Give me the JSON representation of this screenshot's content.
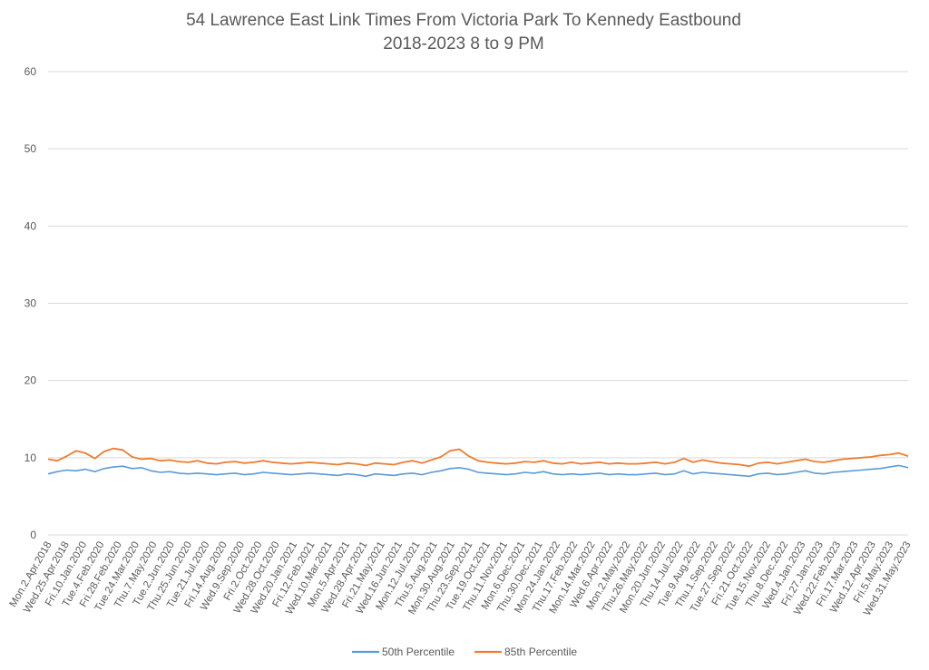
{
  "chart_data": {
    "type": "line",
    "title": "54 Lawrence East Link Times From Victoria Park To Kennedy Eastbound",
    "subtitle": "2018-2023 8 to 9 PM",
    "xlabel": "",
    "ylabel": "",
    "ylim": [
      0,
      60
    ],
    "yticks": [
      0,
      10,
      20,
      30,
      40,
      50,
      60
    ],
    "grid": true,
    "legend_position": "bottom",
    "x_tick_labels": [
      "Mon.2.Apr.2018",
      "Wed.25.Apr.2018",
      "Fri.10.Jan.2020",
      "Tue.4.Feb.2020",
      "Fri.28.Feb.2020",
      "Tue.24.Mar.2020",
      "Thu.7.May.2020",
      "Tue.2.Jun.2020",
      "Thu.25.Jun.2020",
      "Tue.21.Jul.2020",
      "Fri.14.Aug.2020",
      "Wed.9.Sep.2020",
      "Fri.2.Oct.2020",
      "Wed.28.Oct.2020",
      "Wed.20.Jan.2021",
      "Fri.12.Feb.2021",
      "Wed.10.Mar.2021",
      "Mon.5.Apr.2021",
      "Wed.28.Apr.2021",
      "Fri.21.May.2021",
      "Wed.16.Jun.2021",
      "Mon.12.Jul.2021",
      "Thu.5.Aug.2021",
      "Mon.30.Aug.2021",
      "Thu.23.Sep.2021",
      "Tue.19.Oct.2021",
      "Thu.11.Nov.2021",
      "Mon.6.Dec.2021",
      "Thu.30.Dec.2021",
      "Mon.24.Jan.2022",
      "Thu.17.Feb.2022",
      "Mon.14.Mar.2022",
      "Wed.6.Apr.2022",
      "Mon.2.May.2022",
      "Thu.26.May.2022",
      "Mon.20.Jun.2022",
      "Thu.14.Jul.2022",
      "Tue.9.Aug.2022",
      "Thu.1.Sep.2022",
      "Tue.27.Sep.2022",
      "Fri.21.Oct.2022",
      "Tue.15.Nov.2022",
      "Thu.8.Dec.2022",
      "Wed.4.Jan.2023",
      "Fri.27.Jan.2023",
      "Wed.22.Feb.2023",
      "Fri.17.Mar.2023",
      "Wed.12.Apr.2023",
      "Fri.5.May.2023",
      "Wed.31.May.2023"
    ],
    "series": [
      {
        "name": "50th Percentile",
        "color": "#5B9BD5",
        "values": [
          7.9,
          8.2,
          8.4,
          8.3,
          8.5,
          8.2,
          8.6,
          8.8,
          8.9,
          8.6,
          8.7,
          8.3,
          8.1,
          8.2,
          8.0,
          7.9,
          8.0,
          7.9,
          7.8,
          7.9,
          8.0,
          7.8,
          7.9,
          8.1,
          8.0,
          7.9,
          7.8,
          7.9,
          8.0,
          7.9,
          7.8,
          7.7,
          7.9,
          7.8,
          7.6,
          7.9,
          7.8,
          7.7,
          7.9,
          8.0,
          7.8,
          8.1,
          8.3,
          8.6,
          8.7,
          8.5,
          8.1,
          8.0,
          7.9,
          7.8,
          7.9,
          8.1,
          8.0,
          8.2,
          7.9,
          7.8,
          7.9,
          7.8,
          7.9,
          8.0,
          7.8,
          7.9,
          7.8,
          7.8,
          7.9,
          8.0,
          7.8,
          7.9,
          8.3,
          7.9,
          8.1,
          8.0,
          7.9,
          7.8,
          7.7,
          7.6,
          7.9,
          8.0,
          7.8,
          7.9,
          8.1,
          8.3,
          8.0,
          7.9,
          8.1,
          8.2,
          8.3,
          8.4,
          8.5,
          8.6,
          8.8,
          9.0,
          8.7
        ]
      },
      {
        "name": "85th Percentile",
        "color": "#ED7D31",
        "values": [
          9.8,
          9.6,
          10.2,
          10.9,
          10.6,
          9.9,
          10.8,
          11.2,
          11.0,
          10.1,
          9.8,
          9.9,
          9.6,
          9.7,
          9.5,
          9.4,
          9.6,
          9.3,
          9.2,
          9.4,
          9.5,
          9.3,
          9.4,
          9.6,
          9.4,
          9.3,
          9.2,
          9.3,
          9.4,
          9.3,
          9.2,
          9.1,
          9.3,
          9.2,
          9.0,
          9.3,
          9.2,
          9.1,
          9.4,
          9.6,
          9.3,
          9.7,
          10.1,
          10.9,
          11.1,
          10.2,
          9.6,
          9.4,
          9.3,
          9.2,
          9.3,
          9.5,
          9.4,
          9.6,
          9.3,
          9.2,
          9.4,
          9.2,
          9.3,
          9.4,
          9.2,
          9.3,
          9.2,
          9.2,
          9.3,
          9.4,
          9.2,
          9.4,
          9.9,
          9.4,
          9.7,
          9.5,
          9.3,
          9.2,
          9.1,
          8.9,
          9.3,
          9.4,
          9.2,
          9.4,
          9.6,
          9.8,
          9.5,
          9.4,
          9.6,
          9.8,
          9.9,
          10.0,
          10.1,
          10.3,
          10.4,
          10.6,
          10.2
        ]
      }
    ]
  },
  "legend": {
    "p50": "50th Percentile",
    "p85": "85th Percentile"
  }
}
